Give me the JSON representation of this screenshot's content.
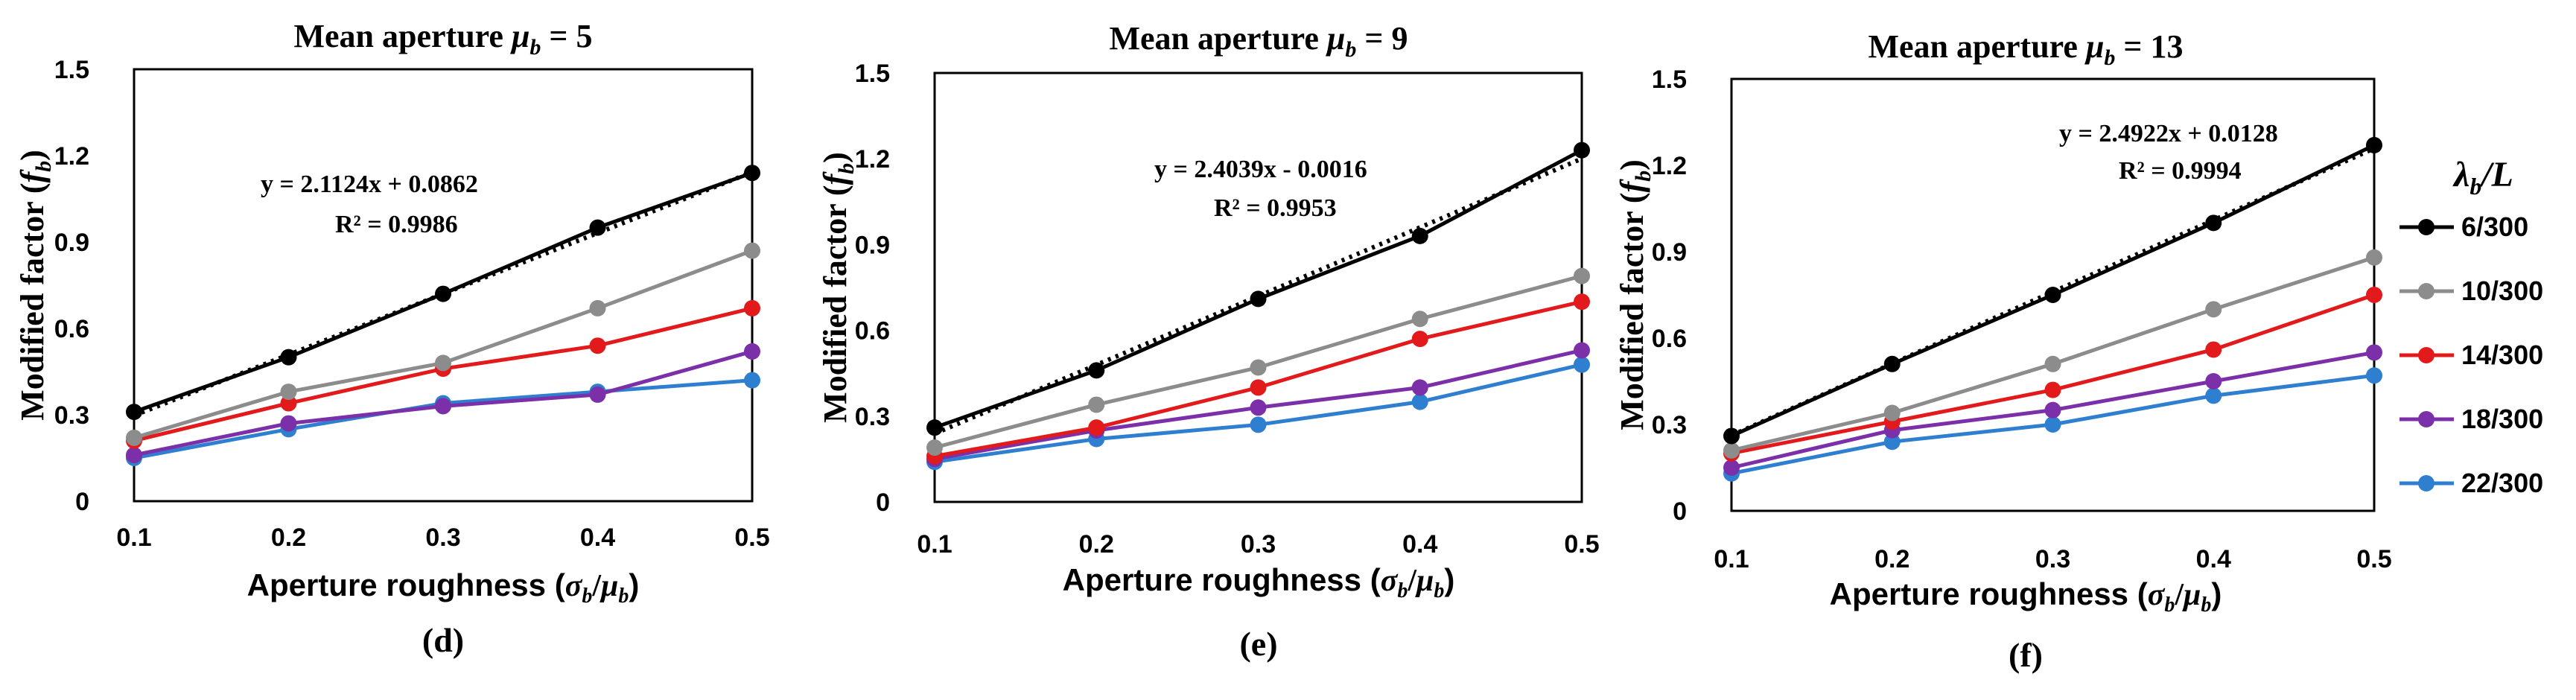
{
  "legend": {
    "title": "λb/L",
    "title_main": "λ",
    "title_sub": "b",
    "title_rest": "/L"
  },
  "colors": {
    "6/300": "#000000",
    "10/300": "#8c8c8c",
    "14/300": "#e31a1c",
    "18/300": "#7b2fa8",
    "22/300": "#2f7fd0"
  },
  "chart_data": [
    {
      "type": "line",
      "panel_label": "(d)",
      "title": "Mean aperture μb = 5",
      "title_prefix": "Mean aperture ",
      "title_var": "μ",
      "title_sub": "b",
      "title_suffix": " = 5",
      "xlabel": "Aperture roughness (σb/μb)",
      "xlabel_prefix": "Aperture roughness (",
      "xlabel_suffix": ")",
      "ylabel": "Modified factor (fb)",
      "ylabel_prefix": "Modified factor (",
      "ylabel_suffix": ")",
      "x": [
        0.1,
        0.2,
        0.3,
        0.4,
        0.5
      ],
      "xticks": [
        "0.1",
        "0.2",
        "0.3",
        "0.4",
        "0.5"
      ],
      "ylim": [
        0,
        1.5
      ],
      "yticks": [
        "0",
        "0.3",
        "0.6",
        "0.9",
        "1.2",
        "1.5"
      ],
      "trendline": {
        "slope": 2.1124,
        "intercept": 0.0862,
        "equation": "y = 2.1124x + 0.0862",
        "r2": "R² = 0.9986"
      },
      "series": [
        {
          "name": "6/300",
          "values": [
            0.31,
            0.5,
            0.72,
            0.95,
            1.14
          ]
        },
        {
          "name": "10/300",
          "values": [
            0.22,
            0.38,
            0.48,
            0.67,
            0.87
          ]
        },
        {
          "name": "14/300",
          "values": [
            0.21,
            0.34,
            0.46,
            0.54,
            0.67
          ]
        },
        {
          "name": "18/300",
          "values": [
            0.16,
            0.27,
            0.33,
            0.37,
            0.52
          ]
        },
        {
          "name": "22/300",
          "values": [
            0.15,
            0.25,
            0.34,
            0.38,
            0.42
          ]
        }
      ]
    },
    {
      "type": "line",
      "panel_label": "(e)",
      "title": "Mean aperture μb = 9",
      "title_prefix": "Mean aperture ",
      "title_var": "μ",
      "title_sub": "b",
      "title_suffix": " = 9",
      "xlabel": "Aperture roughness (σb/μb)",
      "xlabel_prefix": "Aperture roughness (",
      "xlabel_suffix": ")",
      "ylabel": "Modified factor (fb)",
      "ylabel_prefix": "Modified factor (",
      "ylabel_suffix": ")",
      "x": [
        0.1,
        0.2,
        0.3,
        0.4,
        0.5
      ],
      "xticks": [
        "0.1",
        "0.2",
        "0.3",
        "0.4",
        "0.5"
      ],
      "ylim": [
        0,
        1.5
      ],
      "yticks": [
        "0",
        "0.3",
        "0.6",
        "0.9",
        "1.2",
        "1.5"
      ],
      "trendline": {
        "slope": 2.4039,
        "intercept": -0.0016,
        "equation": "y = 2.4039x - 0.0016",
        "r2": "R² = 0.9953"
      },
      "series": [
        {
          "name": "6/300",
          "values": [
            0.26,
            0.46,
            0.71,
            0.93,
            1.23
          ]
        },
        {
          "name": "10/300",
          "values": [
            0.19,
            0.34,
            0.47,
            0.64,
            0.79
          ]
        },
        {
          "name": "14/300",
          "values": [
            0.16,
            0.26,
            0.4,
            0.57,
            0.7
          ]
        },
        {
          "name": "18/300",
          "values": [
            0.15,
            0.25,
            0.33,
            0.4,
            0.53
          ]
        },
        {
          "name": "22/300",
          "values": [
            0.14,
            0.22,
            0.27,
            0.35,
            0.48
          ]
        }
      ]
    },
    {
      "type": "line",
      "panel_label": "(f)",
      "title": "Mean aperture μb = 13",
      "title_prefix": "Mean aperture ",
      "title_var": "μ",
      "title_sub": "b",
      "title_suffix": " = 13",
      "xlabel": "Aperture roughness (σb/μb)",
      "xlabel_prefix": "Aperture roughness (",
      "xlabel_suffix": ")",
      "ylabel": "Modified factor (fb)",
      "ylabel_prefix": "Modified factor (",
      "ylabel_suffix": ")",
      "x": [
        0.1,
        0.2,
        0.3,
        0.4,
        0.5
      ],
      "xticks": [
        "0.1",
        "0.2",
        "0.3",
        "0.4",
        "0.5"
      ],
      "ylim": [
        0,
        1.5
      ],
      "yticks": [
        "0",
        "0.3",
        "0.6",
        "0.9",
        "1.2",
        "1.5"
      ],
      "trendline": {
        "slope": 2.4922,
        "intercept": 0.0128,
        "equation": "y = 2.4922x + 0.0128",
        "r2": "R² = 0.9994"
      },
      "series": [
        {
          "name": "6/300",
          "values": [
            0.26,
            0.51,
            0.75,
            1.0,
            1.27
          ]
        },
        {
          "name": "10/300",
          "values": [
            0.21,
            0.34,
            0.51,
            0.7,
            0.88
          ]
        },
        {
          "name": "14/300",
          "values": [
            0.2,
            0.31,
            0.42,
            0.56,
            0.75
          ]
        },
        {
          "name": "18/300",
          "values": [
            0.15,
            0.28,
            0.35,
            0.45,
            0.55
          ]
        },
        {
          "name": "22/300",
          "values": [
            0.13,
            0.24,
            0.3,
            0.4,
            0.47
          ]
        }
      ]
    }
  ]
}
